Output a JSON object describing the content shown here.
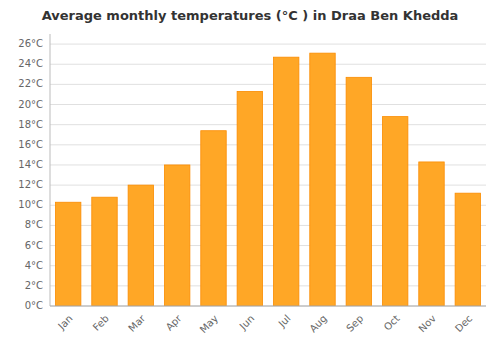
{
  "chart_data": {
    "type": "bar",
    "title": "Average monthly temperatures (°C ) in Draa Ben Khedda",
    "categories": [
      "Jan",
      "Feb",
      "Mar",
      "Apr",
      "May",
      "Jun",
      "Jul",
      "Aug",
      "Sep",
      "Oct",
      "Nov",
      "Dec"
    ],
    "values": [
      10.3,
      10.8,
      12.0,
      14.0,
      17.4,
      21.3,
      24.7,
      25.1,
      22.7,
      18.8,
      14.3,
      11.2
    ],
    "color": "#FFA726",
    "ylim": [
      0,
      27
    ],
    "yticks": [
      {
        "value": 0,
        "label": "0°C"
      },
      {
        "value": 2,
        "label": "2°C"
      },
      {
        "value": 4,
        "label": "4°C"
      },
      {
        "value": 6,
        "label": "6°C"
      },
      {
        "value": 8,
        "label": "8°C"
      },
      {
        "value": 10,
        "label": "10°C"
      },
      {
        "value": 12,
        "label": "12°C"
      },
      {
        "value": 14,
        "label": "14°C"
      },
      {
        "value": 16,
        "label": "16°C"
      },
      {
        "value": 18,
        "label": "18°C"
      },
      {
        "value": 20,
        "label": "20°C"
      },
      {
        "value": 22,
        "label": "22°C"
      },
      {
        "value": 24,
        "label": "24°C"
      },
      {
        "value": 26,
        "label": "26°C"
      }
    ],
    "grid": true
  }
}
